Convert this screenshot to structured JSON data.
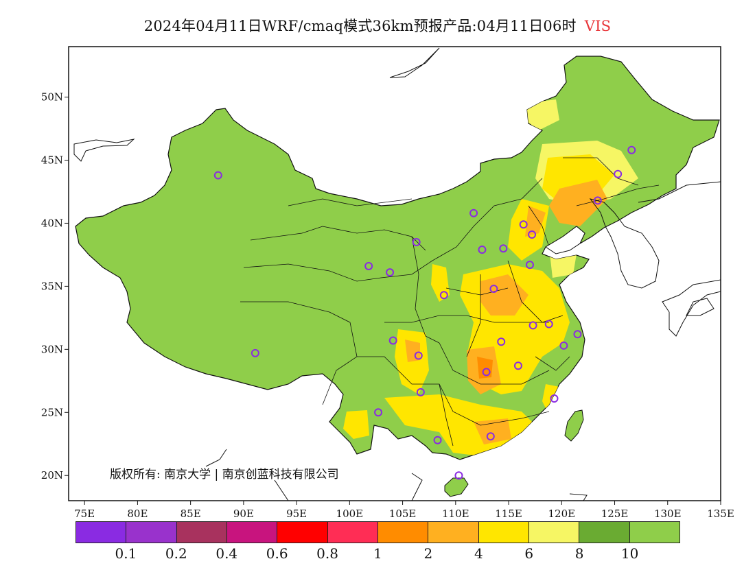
{
  "title": {
    "main": "2024年04月11日WRF/cmaq模式36km预报产品:04月11日06时",
    "variable": "VIS"
  },
  "copyright": "版权所有: 南京大学 | 南京创蓝科技有限公司",
  "axes": {
    "lon_ticks": [
      "75E",
      "80E",
      "85E",
      "90E",
      "95E",
      "100E",
      "105E",
      "110E",
      "115E",
      "120E",
      "125E",
      "130E",
      "135E"
    ],
    "lon_values": [
      75,
      80,
      85,
      90,
      95,
      100,
      105,
      110,
      115,
      120,
      125,
      130,
      135
    ],
    "lat_ticks": [
      "20N",
      "25N",
      "30N",
      "35N",
      "40N",
      "45N",
      "50N"
    ],
    "lat_values": [
      20,
      25,
      30,
      35,
      40,
      45,
      50
    ],
    "lon_range": [
      73.5,
      135
    ],
    "lat_range": [
      18,
      54
    ]
  },
  "legend": {
    "colors": [
      "#8a2be2",
      "#9932cc",
      "#a8325e",
      "#c8147e",
      "#ff0000",
      "#ff2d55",
      "#ff8c00",
      "#ffb020",
      "#ffe600",
      "#f6f664",
      "#6aab32",
      "#8fce4a"
    ],
    "labels": [
      "0.1",
      "0.2",
      "0.4",
      "0.6",
      "0.8",
      "1",
      "2",
      "4",
      "6",
      "8",
      "10"
    ]
  },
  "colors": {
    "land_fill": "#8fce4a",
    "haze_yellow": "#ffe600",
    "haze_orange": "#ffb020",
    "haze_dark_orange": "#ff8c00",
    "haze_pale": "#f6f664",
    "station_marker": "#8a2be2"
  },
  "stations": [
    {
      "lon": 87.6,
      "lat": 43.8
    },
    {
      "lon": 91.1,
      "lat": 29.7
    },
    {
      "lon": 101.8,
      "lat": 36.6
    },
    {
      "lon": 103.8,
      "lat": 36.1
    },
    {
      "lon": 106.3,
      "lat": 38.5
    },
    {
      "lon": 111.7,
      "lat": 40.8
    },
    {
      "lon": 112.5,
      "lat": 37.9
    },
    {
      "lon": 114.5,
      "lat": 38.0
    },
    {
      "lon": 116.4,
      "lat": 39.9
    },
    {
      "lon": 117.2,
      "lat": 39.1
    },
    {
      "lon": 117.0,
      "lat": 36.7
    },
    {
      "lon": 113.6,
      "lat": 34.8
    },
    {
      "lon": 108.9,
      "lat": 34.3
    },
    {
      "lon": 104.1,
      "lat": 30.7
    },
    {
      "lon": 106.5,
      "lat": 29.5
    },
    {
      "lon": 106.7,
      "lat": 26.6
    },
    {
      "lon": 102.7,
      "lat": 25.0
    },
    {
      "lon": 108.3,
      "lat": 22.8
    },
    {
      "lon": 113.3,
      "lat": 23.1
    },
    {
      "lon": 110.3,
      "lat": 20.0
    },
    {
      "lon": 112.9,
      "lat": 28.2
    },
    {
      "lon": 114.3,
      "lat": 30.6
    },
    {
      "lon": 115.9,
      "lat": 28.7
    },
    {
      "lon": 117.3,
      "lat": 31.9
    },
    {
      "lon": 118.8,
      "lat": 32.0
    },
    {
      "lon": 120.2,
      "lat": 30.3
    },
    {
      "lon": 121.5,
      "lat": 31.2
    },
    {
      "lon": 119.3,
      "lat": 26.1
    },
    {
      "lon": 123.4,
      "lat": 41.8
    },
    {
      "lon": 125.3,
      "lat": 43.9
    },
    {
      "lon": 126.6,
      "lat": 45.8
    }
  ]
}
